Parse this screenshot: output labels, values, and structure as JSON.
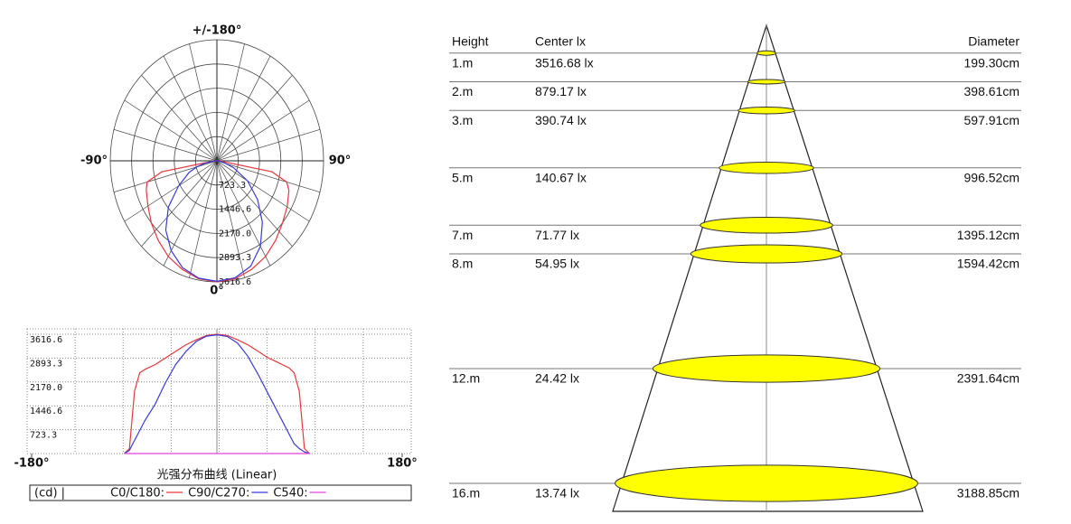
{
  "chart_data": [
    {
      "type": "polar",
      "angles": [
        -90,
        -85,
        -80,
        -75,
        -70,
        -60,
        -50,
        -40,
        -30,
        -20,
        -10,
        0,
        10,
        20,
        30,
        40,
        50,
        60,
        70,
        75,
        80,
        85,
        90
      ],
      "series": [
        {
          "color": "#e8383d",
          "values": [
            0,
            150,
            1900,
            2450,
            2550,
            2700,
            2900,
            3100,
            3300,
            3450,
            3580,
            3616.6,
            3580,
            3450,
            3300,
            3100,
            2900,
            2750,
            2600,
            2450,
            1900,
            150,
            0
          ]
        },
        {
          "color": "#3a3ad8",
          "values": [
            0,
            100,
            400,
            700,
            1000,
            1500,
            2150,
            2700,
            3100,
            3400,
            3560,
            3600,
            3550,
            3350,
            2950,
            2400,
            1800,
            1200,
            600,
            300,
            150,
            50,
            0
          ]
        }
      ],
      "rlim": [
        0,
        3616.6
      ],
      "rticks": [
        723.3,
        1446.6,
        {
          "value": 2170,
          "label": "2170.0"
        },
        2893.3,
        3616.6
      ],
      "angle_ticks": [
        {
          "value": 180,
          "label": "+/-180°"
        },
        {
          "value": -90,
          "label": "-90°"
        },
        {
          "value": 90,
          "label": "90°"
        },
        {
          "value": 0,
          "label": "0°"
        }
      ]
    },
    {
      "type": "line",
      "title": "光强分布曲线 (Linear)",
      "unit": "(cd) |",
      "x": [
        -90,
        -85,
        -80,
        -75,
        -70,
        -60,
        -50,
        -40,
        -30,
        -20,
        -10,
        0,
        10,
        20,
        30,
        40,
        50,
        60,
        70,
        75,
        80,
        85,
        90
      ],
      "series": [
        {
          "name": "C0/C180:",
          "color": "#e8383d",
          "values": [
            0,
            150,
            1900,
            2450,
            2550,
            2700,
            2900,
            3100,
            3300,
            3450,
            3580,
            3616.6,
            3580,
            3450,
            3300,
            3100,
            2900,
            2750,
            2600,
            2450,
            1900,
            150,
            0
          ]
        },
        {
          "name": "C90/C270:",
          "color": "#3a3ad8",
          "values": [
            0,
            100,
            400,
            700,
            1000,
            1500,
            2150,
            2700,
            3100,
            3400,
            3560,
            3600,
            3550,
            3350,
            2950,
            2400,
            1800,
            1200,
            600,
            300,
            150,
            50,
            0
          ]
        },
        {
          "name": "C540:",
          "color": "#e040e0",
          "values": [
            0,
            0,
            0,
            0,
            0,
            0,
            0,
            0,
            0,
            0,
            0,
            0,
            0,
            0,
            0,
            0,
            0,
            0,
            0,
            0,
            0,
            0,
            0
          ]
        }
      ],
      "xlim": [
        -180,
        180
      ],
      "xticks": [
        {
          "value": -180,
          "label": "-180°"
        },
        {
          "value": 180,
          "label": "180°"
        }
      ],
      "ylim": [
        0,
        3616.6
      ],
      "yticks": [
        723.3,
        1446.6,
        {
          "value": 2170,
          "label": "2170.0"
        },
        2893.3,
        3616.6
      ]
    },
    {
      "type": "cone",
      "headers": {
        "height": "Height",
        "lux": "Center lx",
        "diameter": "Diameter"
      },
      "heights": [
        1,
        2,
        3,
        5,
        7,
        8,
        12,
        16
      ],
      "height_labels": [
        "1.m",
        "2.m",
        "3.m",
        "5.m",
        "7.m",
        "8.m",
        "12.m",
        "16.m"
      ],
      "center_lx": [
        "3516.68 lx",
        "879.17 lx",
        "390.74 lx",
        "140.67 lx",
        "71.77 lx",
        "54.95 lx",
        "24.42 lx",
        "13.74 lx"
      ],
      "diameters": [
        199.3,
        398.61,
        597.91,
        996.52,
        1395.12,
        1594.42,
        2391.64,
        3188.85
      ],
      "diameter_labels": [
        "199.30cm",
        "398.61cm",
        "597.91cm",
        "996.52cm",
        "1395.12cm",
        "1594.42cm",
        "2391.64cm",
        "3188.85cm"
      ]
    }
  ]
}
